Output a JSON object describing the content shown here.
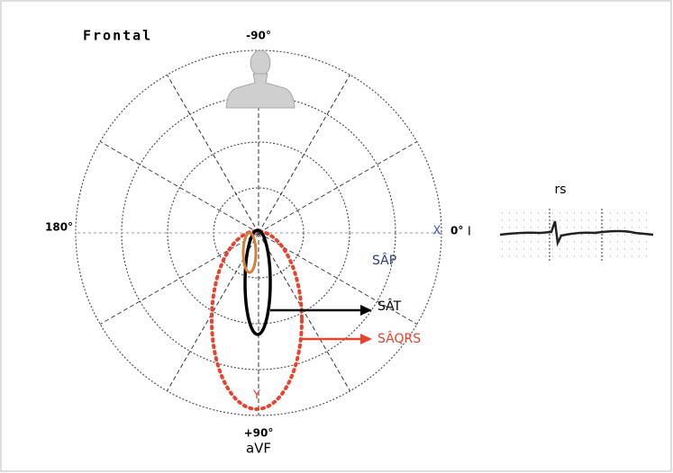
{
  "title": "Frontal",
  "angles": {
    "top": "-90°",
    "left": "180°",
    "right": "0°",
    "right_lead": "I",
    "bottom": "+90°",
    "bottom_lead": "aVF"
  },
  "axes": {
    "x": "X",
    "y": "Y"
  },
  "labels": {
    "sap": "SÂP",
    "sat": "SÂT",
    "saqrs": "SÂQRS"
  },
  "ecg_label": "rs"
}
